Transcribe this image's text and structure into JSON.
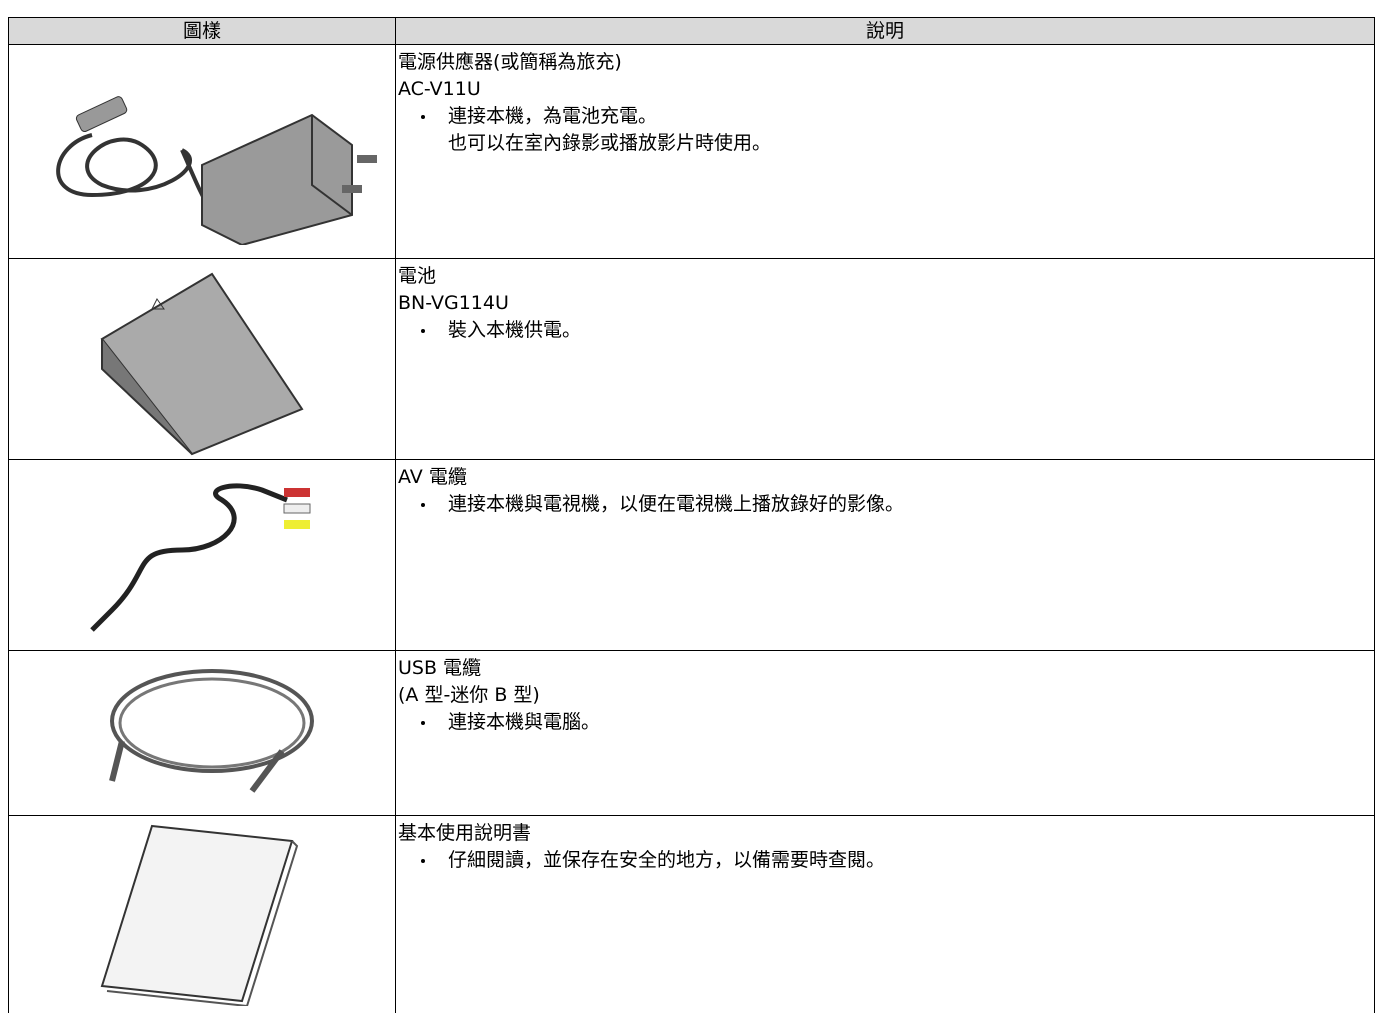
{
  "table": {
    "header": [
      "圖樣",
      "說明"
    ],
    "rows": [
      {
        "lines": [
          "電源供應器(或簡稱為旅充)",
          "AC-V11U"
        ],
        "bullets": [
          [
            "連接本機，為電池充電。",
            "也可以在室內錄影或播放影片時使用。"
          ]
        ]
      },
      {
        "lines": [
          "電池",
          "BN-VG114U"
        ],
        "bullets": [
          [
            "裝入本機供電。"
          ]
        ]
      },
      {
        "lines": [
          "AV 電纜"
        ],
        "bullets": [
          [
            "連接本機與電視機，以便在電視機上播放錄好的影像。"
          ]
        ]
      },
      {
        "lines": [
          "USB 電纜",
          "(A 型-迷你 B 型)"
        ],
        "bullets": [
          [
            "連接本機與電腦。"
          ]
        ]
      },
      {
        "lines": [
          "基本使用說明書"
        ],
        "bullets": [
          [
            "仔細閱讀，並保存在安全的地方，以備需要時查閱。"
          ]
        ]
      }
    ]
  }
}
